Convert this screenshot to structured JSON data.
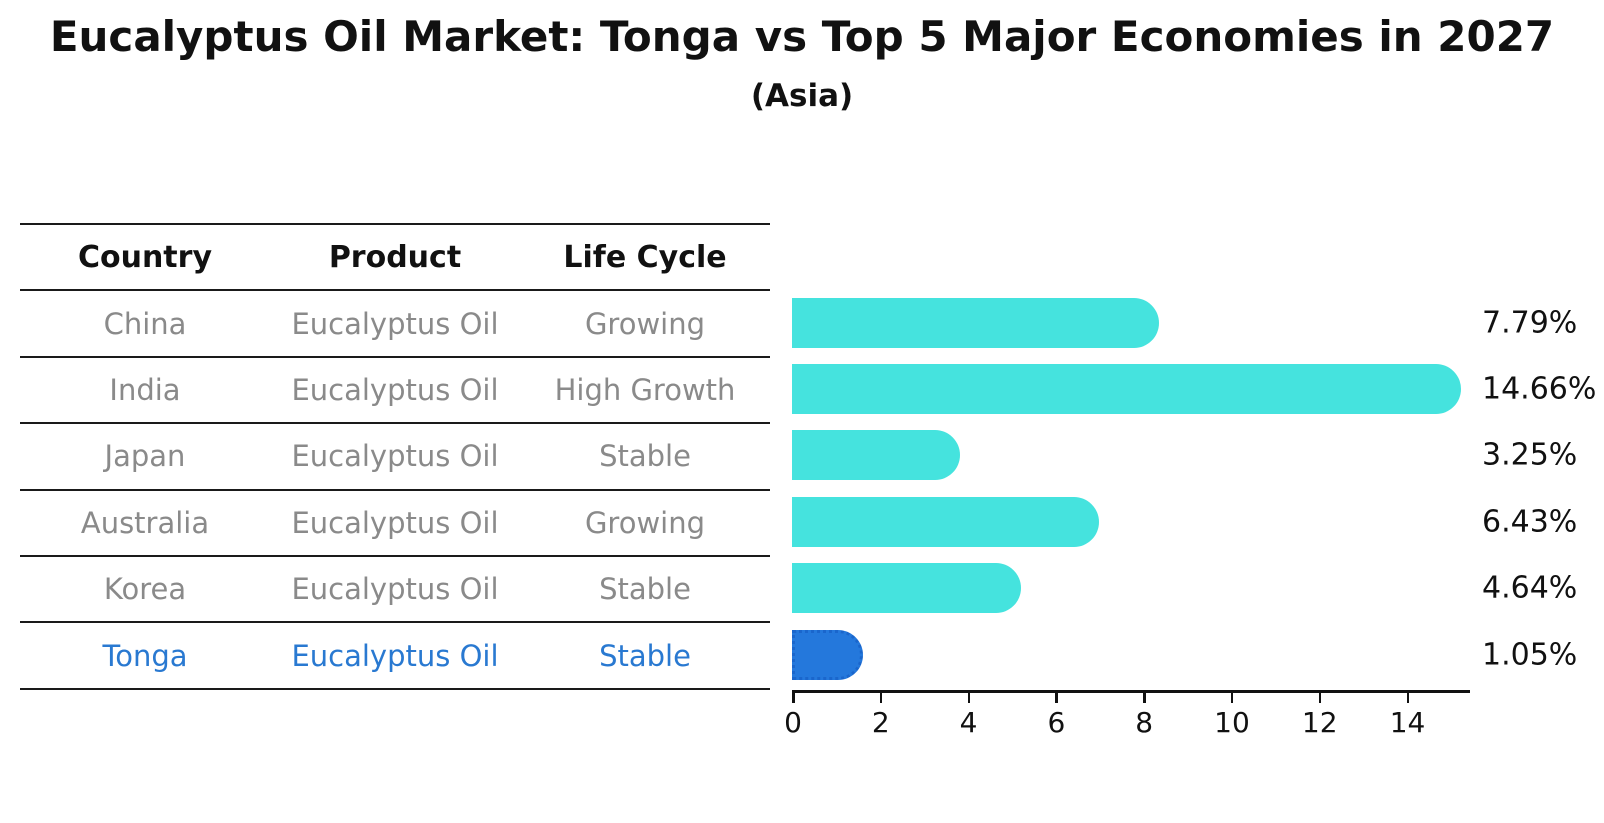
{
  "title": "Eucalyptus Oil Market: Tonga vs Top 5 Major Economies in 2027",
  "subtitle": "(Asia)",
  "table": {
    "headers": [
      "Country",
      "Product",
      "Life Cycle"
    ],
    "rows": [
      {
        "country": "China",
        "product": "Eucalyptus Oil",
        "life_cycle": "Growing",
        "highlight": false
      },
      {
        "country": "India",
        "product": "Eucalyptus Oil",
        "life_cycle": "High Growth",
        "highlight": false
      },
      {
        "country": "Japan",
        "product": "Eucalyptus Oil",
        "life_cycle": "Stable",
        "highlight": false
      },
      {
        "country": "Australia",
        "product": "Eucalyptus Oil",
        "life_cycle": "Growing",
        "highlight": false
      },
      {
        "country": "Korea",
        "product": "Eucalyptus Oil",
        "life_cycle": "Stable",
        "highlight": false
      },
      {
        "country": "Tonga",
        "product": "Eucalyptus Oil",
        "life_cycle": "Stable",
        "highlight": true
      }
    ]
  },
  "chart_data": {
    "type": "bar",
    "orientation": "horizontal",
    "title": "Eucalyptus Oil Market: Tonga vs Top 5 Major Economies in 2027",
    "subtitle": "(Asia)",
    "categories": [
      "China",
      "India",
      "Japan",
      "Australia",
      "Korea",
      "Tonga"
    ],
    "values": [
      7.79,
      14.66,
      3.25,
      6.43,
      4.64,
      1.05
    ],
    "value_labels": [
      "7.79%",
      "14.66%",
      "3.25%",
      "6.43%",
      "4.64%",
      "1.05%"
    ],
    "x_ticks": [
      0,
      2,
      4,
      6,
      8,
      10,
      12,
      14
    ],
    "xlim": [
      0,
      15.4
    ],
    "grid": false,
    "legend": false,
    "highlight_index": 5
  },
  "colors": {
    "bar": "#45e3de",
    "highlight_bar": "#2478dc",
    "highlight_border": "#1a66cc",
    "highlight_text": "#2979d1",
    "table_text": "#8a8a8a",
    "text": "#111111",
    "background": "#ffffff"
  }
}
